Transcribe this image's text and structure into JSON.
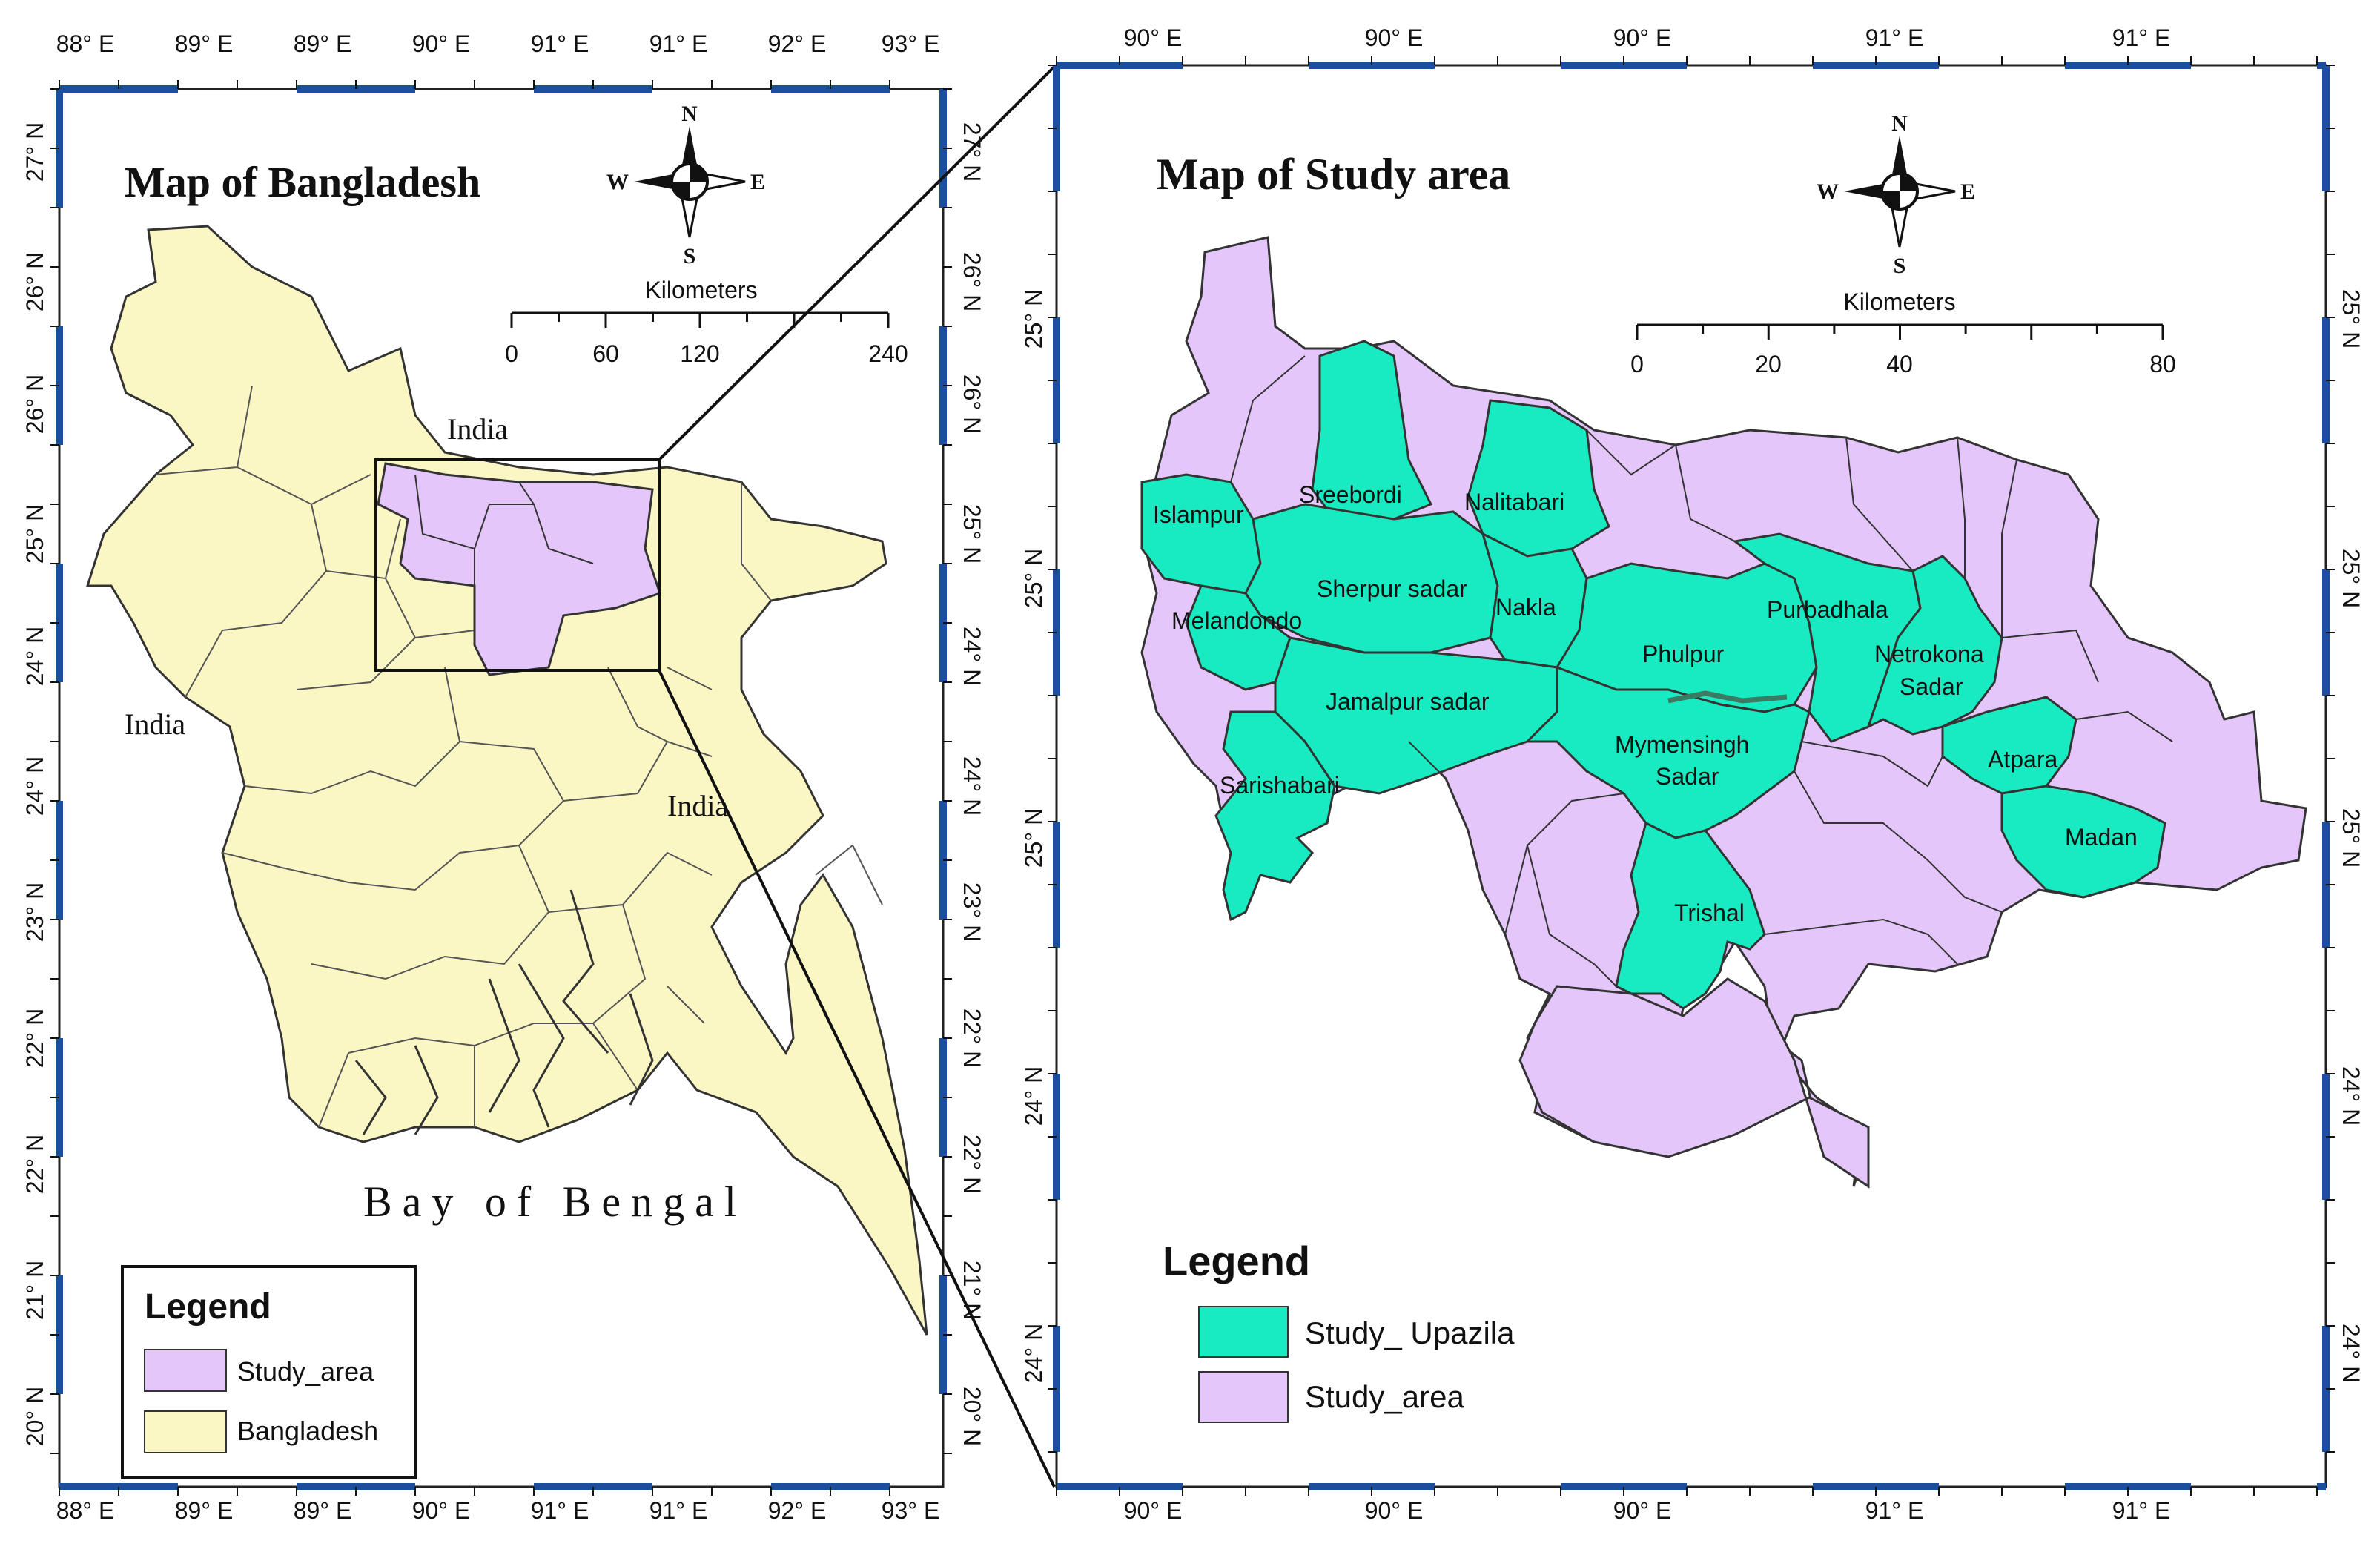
{
  "colors": {
    "bangladesh_fill": "#FBF7C5",
    "study_area_fill": "#E5C6FB",
    "study_upazila_fill": "#18EBC1",
    "frame_blue": "#1B4F9E",
    "boundary": "#333333"
  },
  "map_bangladesh": {
    "title": "Map of Bangladesh",
    "top_ticks": [
      "88° E",
      "89° E",
      "89° E",
      "90° E",
      "91° E",
      "91° E",
      "92° E",
      "93° E"
    ],
    "bottom_ticks": [
      "88° E",
      "89° E",
      "89° E",
      "90° E",
      "91° E",
      "91° E",
      "92° E",
      "93° E"
    ],
    "left_ticks": [
      "27° N",
      "26° N",
      "26° N",
      "25° N",
      "24° N",
      "24° N",
      "23° N",
      "22° N",
      "22° N",
      "21° N",
      "20° N"
    ],
    "right_ticks": [
      "27° N",
      "26° N",
      "26° N",
      "25° N",
      "24° N",
      "24° N",
      "23° N",
      "22° N",
      "22° N",
      "21° N",
      "20° N"
    ],
    "labels": {
      "india_north": "India",
      "india_west": "India",
      "india_east": "India",
      "bay": "Bay of Bengal"
    },
    "compass": {
      "n": "N",
      "s": "S",
      "e": "E",
      "w": "W"
    },
    "scale": {
      "unit": "Kilometers",
      "ticks": [
        "0",
        "60",
        "120",
        "240"
      ]
    },
    "legend": {
      "title": "Legend",
      "items": [
        {
          "label": "Study_area",
          "color": "#E5C6FB"
        },
        {
          "label": "Bangladesh",
          "color": "#FBF7C5"
        }
      ]
    }
  },
  "map_study": {
    "title": "Map of Study area",
    "top_ticks": [
      "90° E",
      "90° E",
      "90° E",
      "91° E",
      "91° E"
    ],
    "bottom_ticks": [
      "90° E",
      "90° E",
      "90° E",
      "91° E",
      "91° E"
    ],
    "left_ticks": [
      "25° N",
      "25° N",
      "25° N",
      "24° N",
      "24° N"
    ],
    "right_ticks": [
      "25° N",
      "25° N",
      "25° N",
      "24° N",
      "24° N"
    ],
    "compass": {
      "n": "N",
      "s": "S",
      "e": "E",
      "w": "W"
    },
    "scale": {
      "unit": "Kilometers",
      "ticks": [
        "0",
        "20",
        "40",
        "80"
      ]
    },
    "upazilas": [
      "Islampur",
      "Sreebordi",
      "Nalitabari",
      "Sherpur sadar",
      "Nakla",
      "Melandondo",
      "Phulpur",
      "Purbadhala",
      "Netrokona",
      "Sadar",
      "Jamalpur sadar",
      "Mymensingh",
      "Sadar",
      "Atpara",
      "Sarishabari",
      "Madan",
      "Trishal"
    ],
    "legend": {
      "title": "Legend",
      "items": [
        {
          "label": "Study_ Upazila",
          "color": "#18EBC1"
        },
        {
          "label": "Study_area",
          "color": "#E5C6FB"
        }
      ]
    }
  }
}
